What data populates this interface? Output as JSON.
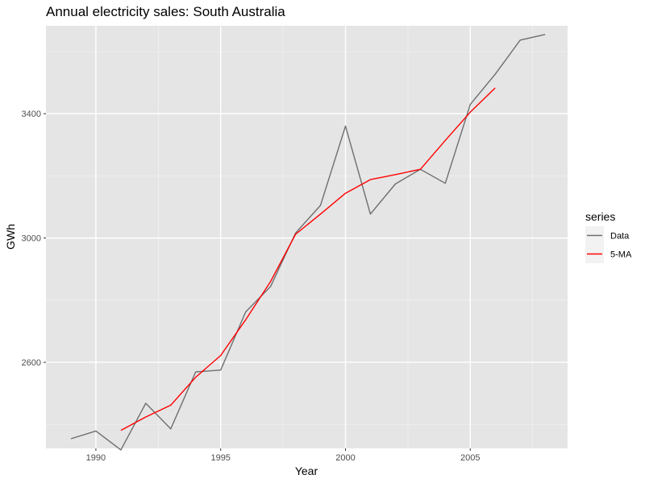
{
  "chart_data": {
    "type": "line",
    "title": "Annual electricity sales: South Australia",
    "xlabel": "Year",
    "ylabel": "GWh",
    "xlim": [
      1988,
      2008.9
    ],
    "ylim": [
      2323,
      3683
    ],
    "x_ticks": [
      1990,
      1995,
      2000,
      2005
    ],
    "y_ticks": [
      2600,
      3000,
      3400
    ],
    "grid": true,
    "legend": {
      "title": "series",
      "position": "right"
    },
    "series": [
      {
        "name": "Data",
        "color": "#6e6e6e",
        "x": [
          1989,
          1990,
          1991,
          1992,
          1993,
          1994,
          1995,
          1996,
          1997,
          1998,
          1999,
          2000,
          2001,
          2002,
          2003,
          2004,
          2005,
          2006,
          2007,
          2008
        ],
        "y": [
          2354,
          2379,
          2318,
          2468,
          2386,
          2569,
          2575,
          2762,
          2844,
          3016,
          3105,
          3360,
          3077,
          3174,
          3221,
          3176,
          3430,
          3527,
          3637,
          3655
        ]
      },
      {
        "name": "5-MA",
        "color": "#ff0000",
        "x": [
          1991,
          1992,
          1993,
          1994,
          1995,
          1996,
          1997,
          1998,
          1999,
          2000,
          2001,
          2002,
          2003,
          2004,
          2005,
          2006
        ],
        "y": [
          2381,
          2424,
          2462,
          2552,
          2622,
          2737,
          2860,
          3012,
          3077,
          3144,
          3188,
          3204,
          3221,
          3314,
          3405,
          3483
        ]
      }
    ]
  }
}
